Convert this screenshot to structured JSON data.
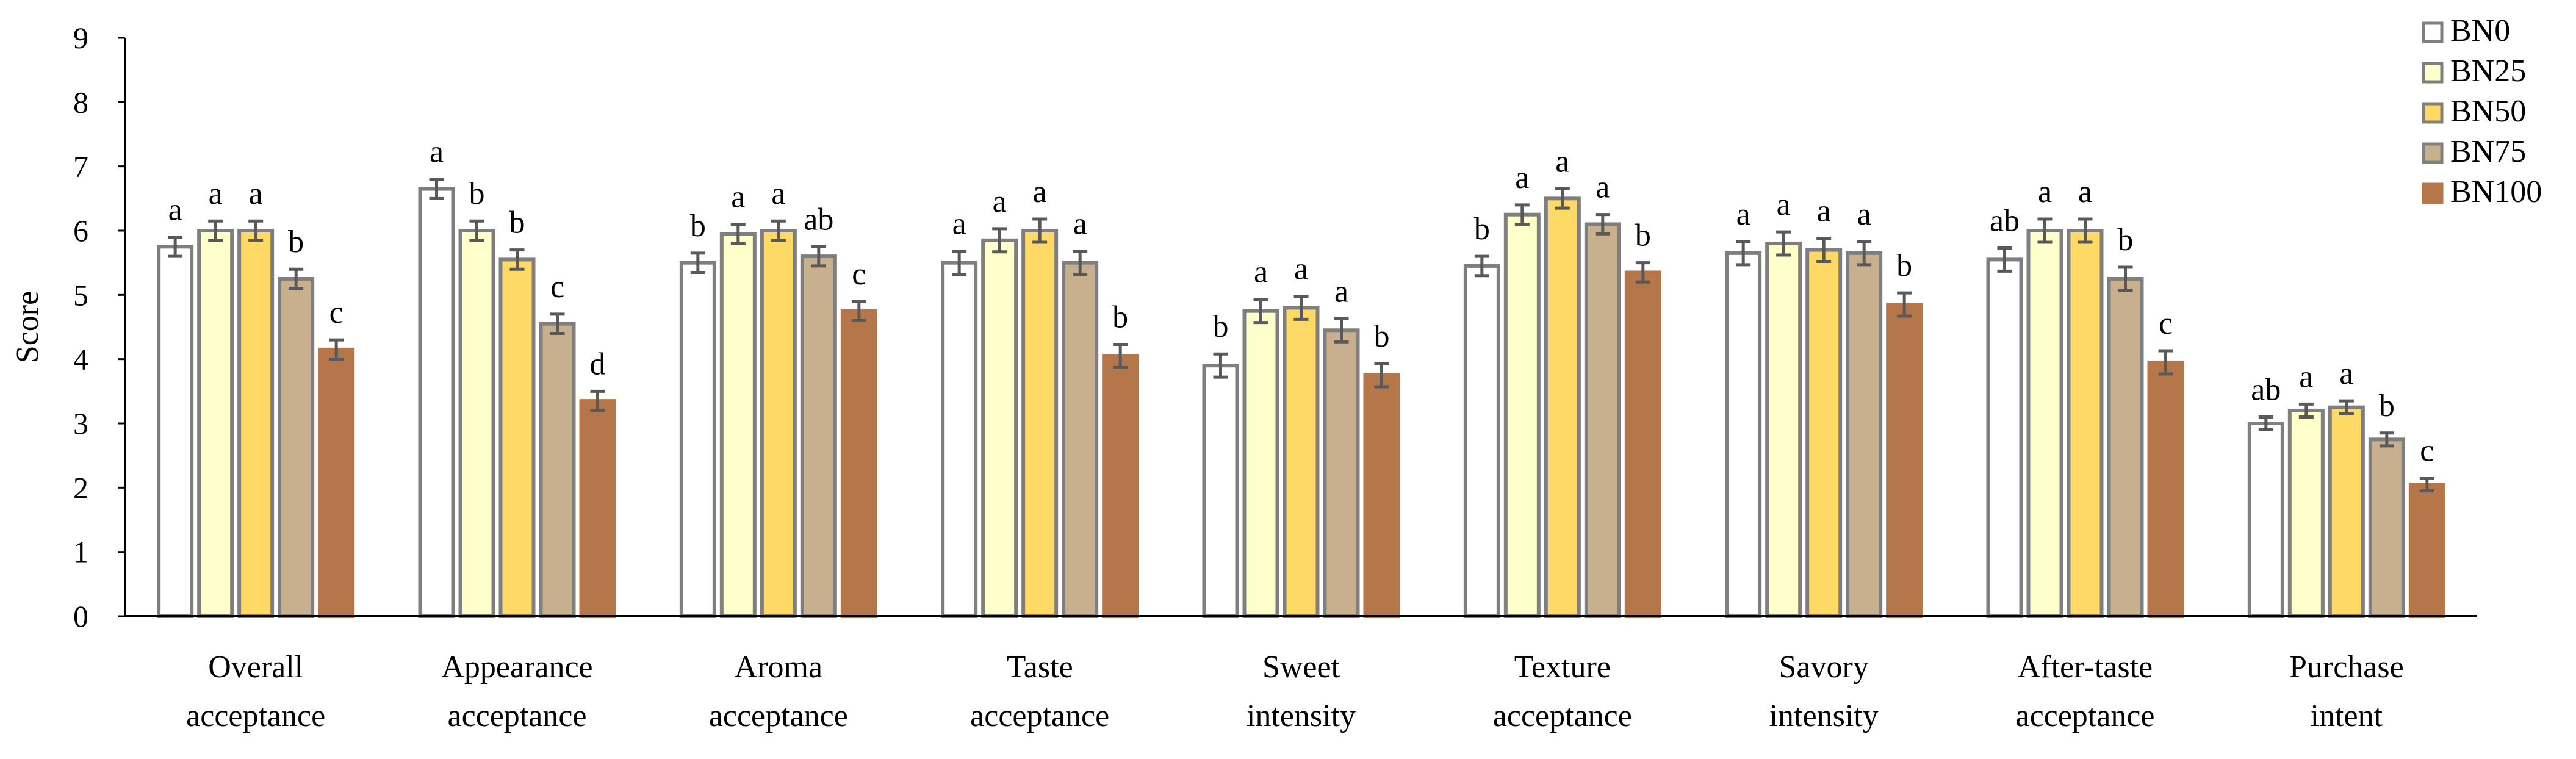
{
  "chart_data": {
    "type": "bar",
    "title": "",
    "xlabel": "",
    "ylabel": "Score",
    "ylim": [
      0,
      9
    ],
    "yticks": [
      0,
      1,
      2,
      3,
      4,
      5,
      6,
      7,
      8,
      9
    ],
    "grid": false,
    "legend_position": "top-right",
    "categories": [
      [
        "Overall",
        "acceptance"
      ],
      [
        "Appearance",
        "acceptance"
      ],
      [
        "Aroma",
        "acceptance"
      ],
      [
        "Taste",
        "acceptance"
      ],
      [
        "Sweet",
        "intensity"
      ],
      [
        "Texture",
        "acceptance"
      ],
      [
        "Savory",
        "intensity"
      ],
      [
        "After-taste",
        "acceptance"
      ],
      [
        "Purchase",
        "intent"
      ]
    ],
    "series": [
      {
        "name": "BN0",
        "fill": "#ffffff",
        "stroke": "#7f7f7f",
        "values": [
          5.75,
          6.65,
          5.5,
          5.5,
          3.9,
          5.45,
          5.65,
          5.55,
          3.0
        ],
        "errors": [
          0.15,
          0.15,
          0.15,
          0.18,
          0.18,
          0.15,
          0.18,
          0.18,
          0.1
        ],
        "letters": [
          "a",
          "a",
          "b",
          "a",
          "b",
          "b",
          "a",
          "ab",
          "ab"
        ]
      },
      {
        "name": "BN25",
        "fill": "#ffffcc",
        "stroke": "#7f7f7f",
        "values": [
          6.0,
          6.0,
          5.95,
          5.85,
          4.75,
          6.25,
          5.8,
          6.0,
          3.2
        ],
        "errors": [
          0.15,
          0.15,
          0.15,
          0.18,
          0.18,
          0.15,
          0.18,
          0.18,
          0.1
        ],
        "letters": [
          "a",
          "b",
          "a",
          "a",
          "a",
          "a",
          "a",
          "a",
          "a"
        ]
      },
      {
        "name": "BN50",
        "fill": "#ffd966",
        "stroke": "#7f7f7f",
        "values": [
          6.0,
          5.55,
          6.0,
          6.0,
          4.8,
          6.5,
          5.7,
          6.0,
          3.25
        ],
        "errors": [
          0.15,
          0.15,
          0.15,
          0.18,
          0.18,
          0.15,
          0.18,
          0.18,
          0.1
        ],
        "letters": [
          "a",
          "b",
          "a",
          "a",
          "a",
          "a",
          "a",
          "a",
          "a"
        ]
      },
      {
        "name": "BN75",
        "fill": "#c8b08e",
        "stroke": "#7f7f7f",
        "values": [
          5.25,
          4.55,
          5.6,
          5.5,
          4.45,
          6.1,
          5.65,
          5.25,
          2.75
        ],
        "errors": [
          0.15,
          0.15,
          0.15,
          0.18,
          0.18,
          0.15,
          0.18,
          0.18,
          0.1
        ],
        "letters": [
          "b",
          "c",
          "ab",
          "a",
          "a",
          "a",
          "a",
          "b",
          "b"
        ]
      },
      {
        "name": "BN100",
        "fill": "#b5764a",
        "stroke": "#b5764a",
        "values": [
          4.15,
          3.35,
          4.75,
          4.05,
          3.75,
          5.35,
          4.85,
          3.95,
          2.05
        ],
        "errors": [
          0.15,
          0.15,
          0.15,
          0.18,
          0.18,
          0.15,
          0.18,
          0.18,
          0.1
        ],
        "letters": [
          "c",
          "d",
          "c",
          "b",
          "b",
          "b",
          "b",
          "c",
          "c"
        ]
      }
    ]
  }
}
